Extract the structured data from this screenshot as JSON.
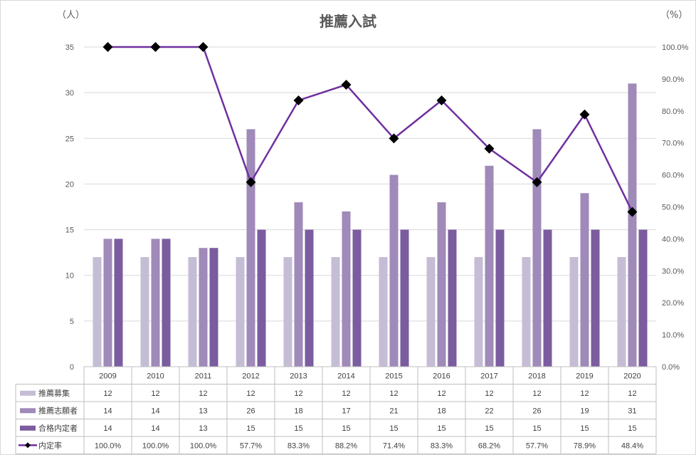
{
  "chart_data": {
    "type": "bar",
    "title": "推薦入試",
    "y_unit_left": "（人）",
    "y_unit_right": "（%）",
    "categories": [
      "2009",
      "2010",
      "2011",
      "2012",
      "2013",
      "2014",
      "2015",
      "2016",
      "2017",
      "2018",
      "2019",
      "2020"
    ],
    "ylim": [
      0,
      35
    ],
    "y_ticks": [
      0,
      5,
      10,
      15,
      20,
      25,
      30,
      35
    ],
    "y2lim": [
      0,
      100
    ],
    "y2_ticks": [
      "0.0%",
      "10.0%",
      "20.0%",
      "30.0%",
      "40.0%",
      "50.0%",
      "60.0%",
      "70.0%",
      "80.0%",
      "90.0%",
      "100.0%"
    ],
    "grid": true,
    "series": [
      {
        "name": "推薦募集",
        "kind": "bar",
        "color": "#c5bdd5",
        "values": [
          12,
          12,
          12,
          12,
          12,
          12,
          12,
          12,
          12,
          12,
          12,
          12
        ]
      },
      {
        "name": "推薦志願者",
        "kind": "bar",
        "color": "#9f8ab9",
        "values": [
          14,
          14,
          13,
          26,
          18,
          17,
          21,
          18,
          22,
          26,
          19,
          31
        ]
      },
      {
        "name": "合格内定者",
        "kind": "bar",
        "color": "#7a5c9f",
        "values": [
          14,
          14,
          13,
          15,
          15,
          15,
          15,
          15,
          15,
          15,
          15,
          15
        ]
      },
      {
        "name": "内定率",
        "kind": "line",
        "axis": "right",
        "color": "#7030a0",
        "marker_color": "#000000",
        "values": [
          100.0,
          100.0,
          100.0,
          57.7,
          83.3,
          88.2,
          71.4,
          83.3,
          68.2,
          57.7,
          78.9,
          48.4
        ],
        "labels": [
          "100.0%",
          "100.0%",
          "100.0%",
          "57.7%",
          "83.3%",
          "88.2%",
          "71.4%",
          "83.3%",
          "68.2%",
          "57.7%",
          "78.9%",
          "48.4%"
        ]
      }
    ]
  }
}
